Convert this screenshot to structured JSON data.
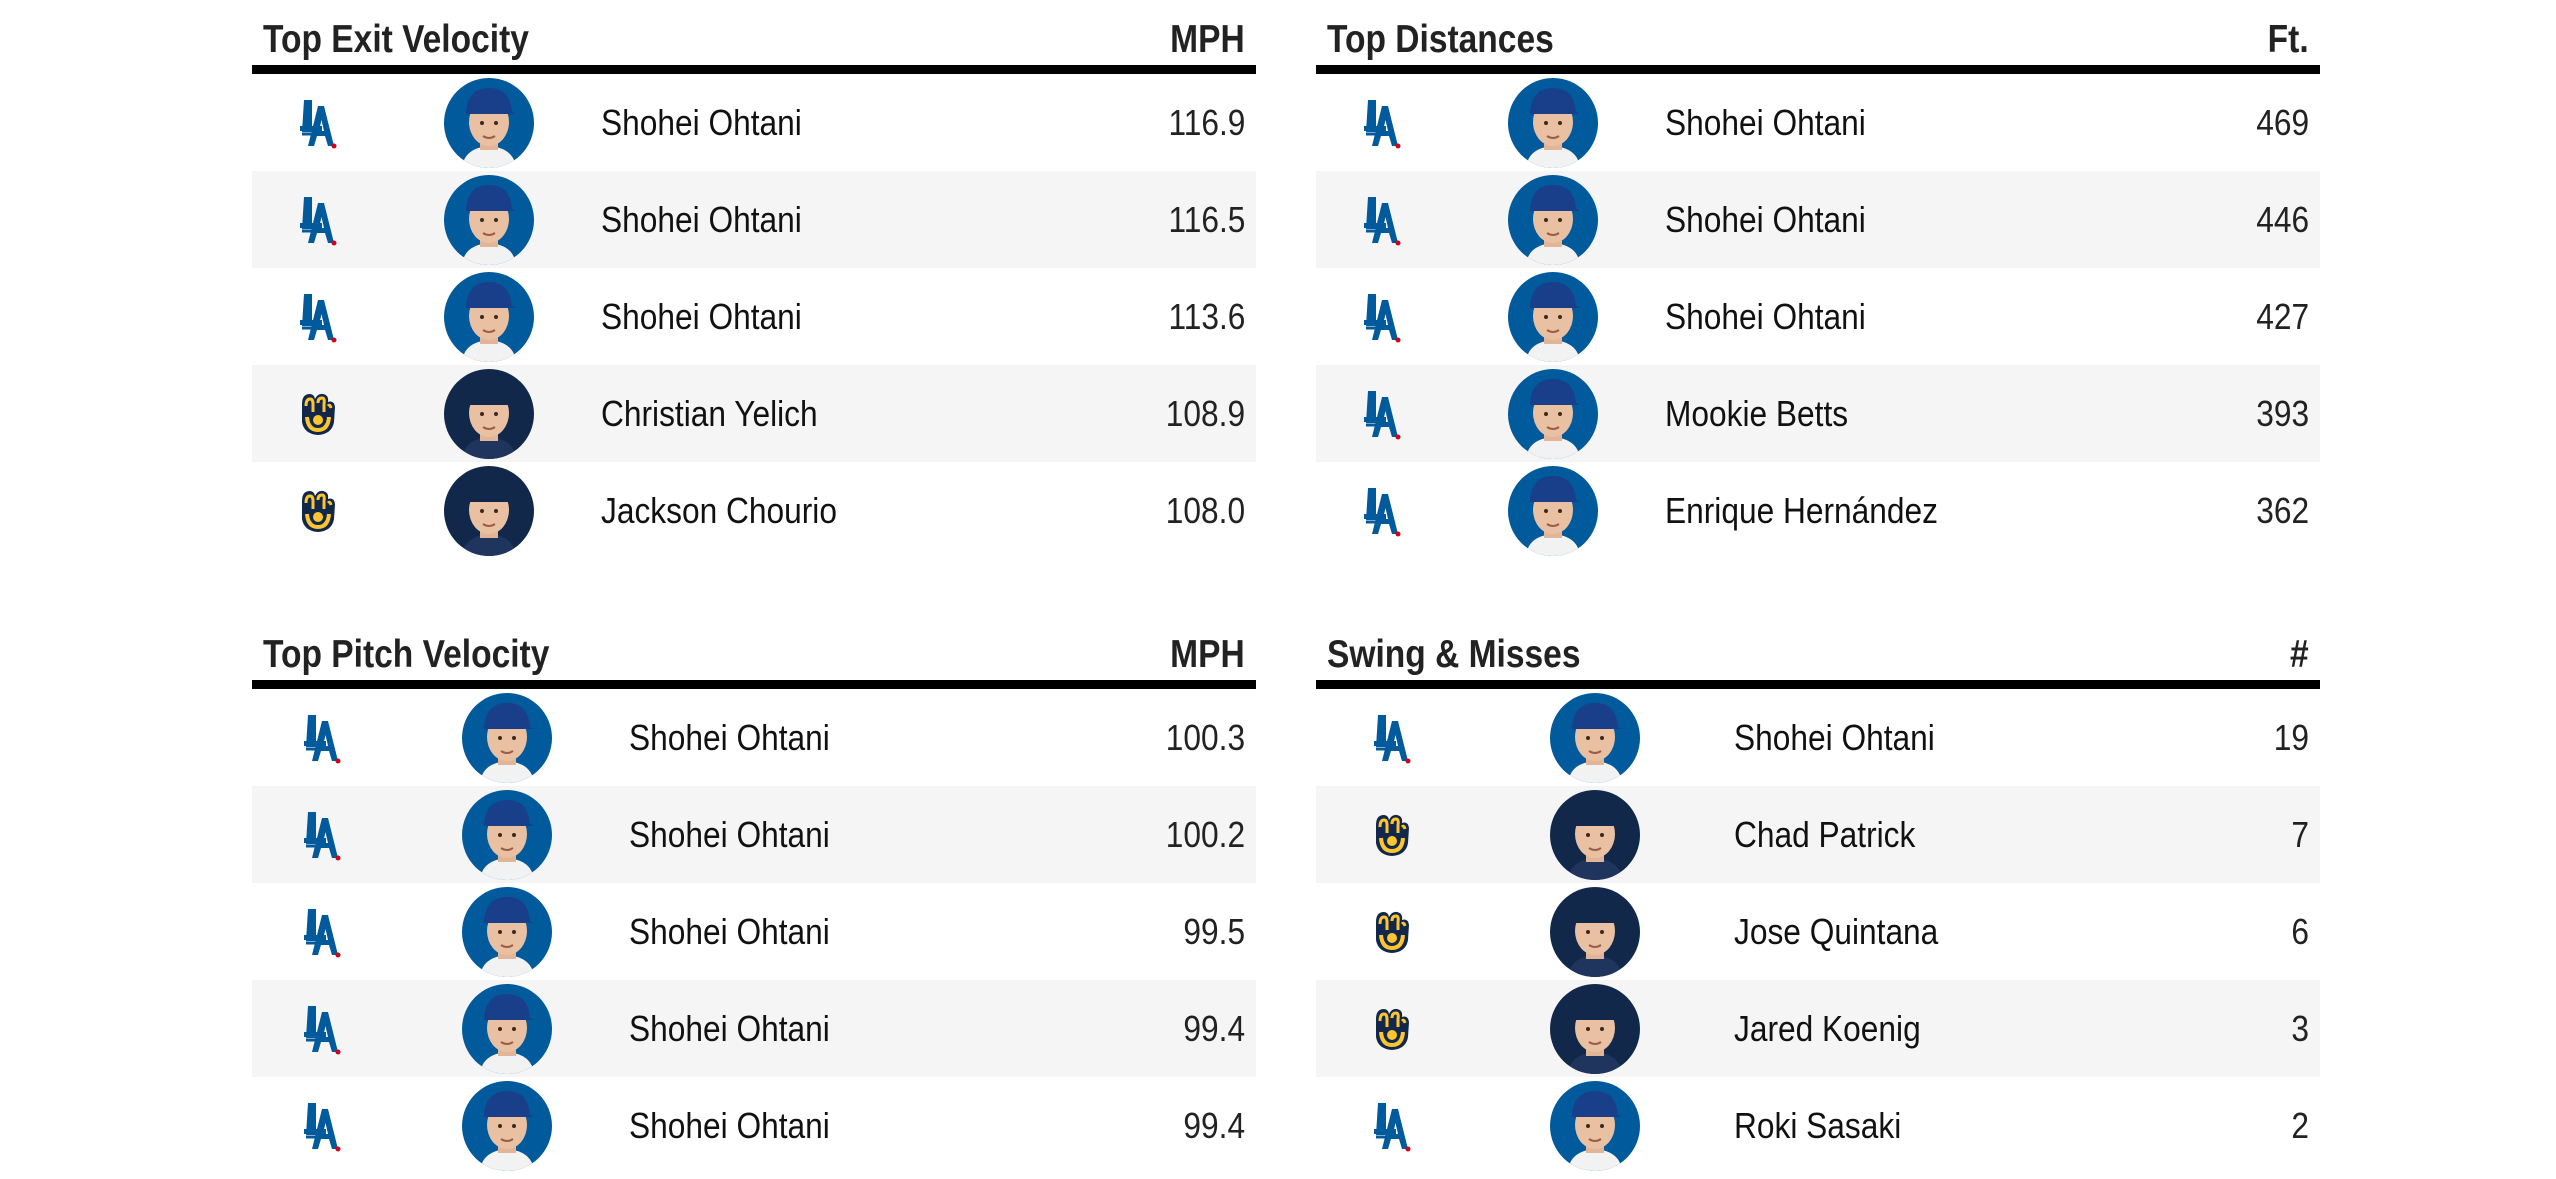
{
  "colors": {
    "dodgers_blue": "#005a9c",
    "brewers_navy": "#12284b",
    "brewers_gold": "#ffc52f",
    "row_alt": "#f5f5f5"
  },
  "panels": [
    {
      "title": "Top Exit Velocity",
      "unit": "MPH",
      "rows": [
        {
          "team": "dodgers",
          "team_icon": "dodgers-la-logo",
          "name": "Shohei Ohtani",
          "value": "116.9"
        },
        {
          "team": "dodgers",
          "team_icon": "dodgers-la-logo",
          "name": "Shohei Ohtani",
          "value": "116.5"
        },
        {
          "team": "dodgers",
          "team_icon": "dodgers-la-logo",
          "name": "Shohei Ohtani",
          "value": "113.6"
        },
        {
          "team": "brewers",
          "team_icon": "brewers-glove-logo",
          "name": "Christian Yelich",
          "value": "108.9"
        },
        {
          "team": "brewers",
          "team_icon": "brewers-glove-logo",
          "name": "Jackson Chourio",
          "value": "108.0"
        }
      ]
    },
    {
      "title": "Top Distances",
      "unit": "Ft.",
      "rows": [
        {
          "team": "dodgers",
          "team_icon": "dodgers-la-logo",
          "name": "Shohei Ohtani",
          "value": "469"
        },
        {
          "team": "dodgers",
          "team_icon": "dodgers-la-logo",
          "name": "Shohei Ohtani",
          "value": "446"
        },
        {
          "team": "dodgers",
          "team_icon": "dodgers-la-logo",
          "name": "Shohei Ohtani",
          "value": "427"
        },
        {
          "team": "dodgers",
          "team_icon": "dodgers-la-logo",
          "name": "Mookie Betts",
          "value": "393"
        },
        {
          "team": "dodgers",
          "team_icon": "dodgers-la-logo",
          "name": "Enrique Hernández",
          "value": "362"
        }
      ]
    },
    {
      "title": "Top Pitch Velocity",
      "unit": "MPH",
      "rows": [
        {
          "team": "dodgers",
          "team_icon": "dodgers-la-logo",
          "name": "Shohei Ohtani",
          "value": "100.3"
        },
        {
          "team": "dodgers",
          "team_icon": "dodgers-la-logo",
          "name": "Shohei Ohtani",
          "value": "100.2"
        },
        {
          "team": "dodgers",
          "team_icon": "dodgers-la-logo",
          "name": "Shohei Ohtani",
          "value": "99.5"
        },
        {
          "team": "dodgers",
          "team_icon": "dodgers-la-logo",
          "name": "Shohei Ohtani",
          "value": "99.4"
        },
        {
          "team": "dodgers",
          "team_icon": "dodgers-la-logo",
          "name": "Shohei Ohtani",
          "value": "99.4"
        }
      ]
    },
    {
      "title": "Swing & Misses",
      "unit": "#",
      "rows": [
        {
          "team": "dodgers",
          "team_icon": "dodgers-la-logo",
          "name": "Shohei Ohtani",
          "value": "19"
        },
        {
          "team": "brewers",
          "team_icon": "brewers-glove-logo",
          "name": "Chad Patrick",
          "value": "7"
        },
        {
          "team": "brewers",
          "team_icon": "brewers-glove-logo",
          "name": "Jose Quintana",
          "value": "6"
        },
        {
          "team": "brewers",
          "team_icon": "brewers-glove-logo",
          "name": "Jared Koenig",
          "value": "3"
        },
        {
          "team": "dodgers",
          "team_icon": "dodgers-la-logo",
          "name": "Roki Sasaki",
          "value": "2"
        }
      ]
    }
  ]
}
